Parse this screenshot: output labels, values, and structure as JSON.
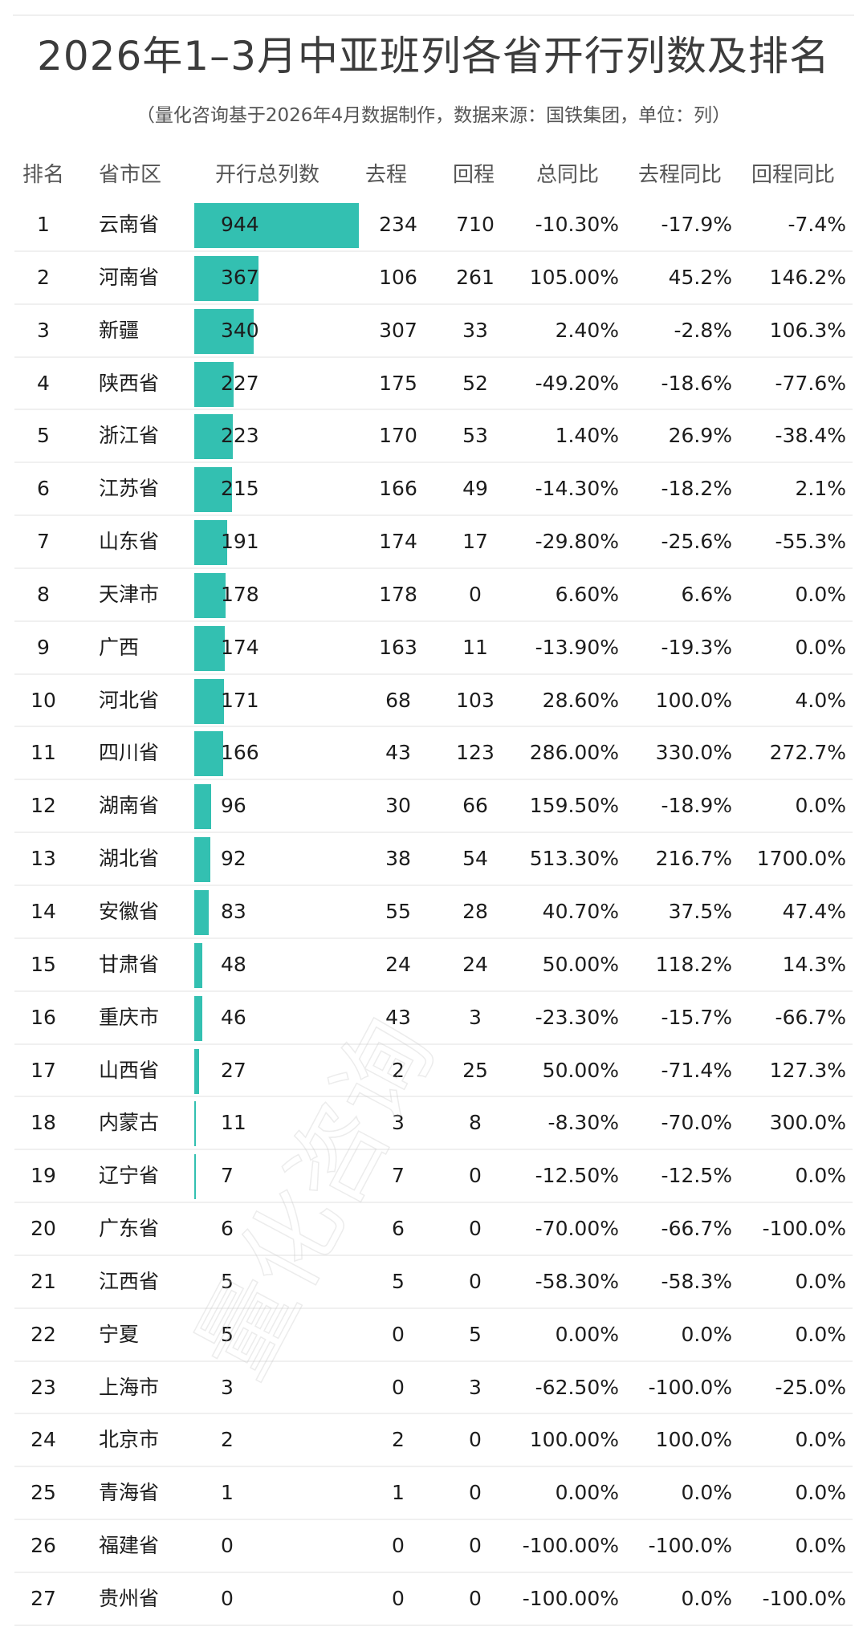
{
  "header": {
    "title": "2026年1–3月中亚班列各省开行列数及排名",
    "subtitle": "（量化咨询基于2026年4月数据制作，数据来源：国铁集团，单位：列）"
  },
  "table": {
    "columns": [
      "排名",
      "省市区",
      "开行总列数",
      "去程",
      "回程",
      "总同比",
      "去程同比",
      "回程同比"
    ],
    "bar_color": "#33c0b1",
    "bar_max_value": 944,
    "bar_max_width": 205,
    "rows": [
      {
        "rank": "1",
        "province": "云南省",
        "total": "944",
        "outbound": "234",
        "return": "710",
        "yoy": "-10.30%",
        "out_yoy": "-17.9%",
        "ret_yoy": "-7.4%"
      },
      {
        "rank": "2",
        "province": "河南省",
        "total": "367",
        "outbound": "106",
        "return": "261",
        "yoy": "105.00%",
        "out_yoy": "45.2%",
        "ret_yoy": "146.2%"
      },
      {
        "rank": "3",
        "province": "新疆",
        "total": "340",
        "outbound": "307",
        "return": "33",
        "yoy": "2.40%",
        "out_yoy": "-2.8%",
        "ret_yoy": "106.3%"
      },
      {
        "rank": "4",
        "province": "陕西省",
        "total": "227",
        "outbound": "175",
        "return": "52",
        "yoy": "-49.20%",
        "out_yoy": "-18.6%",
        "ret_yoy": "-77.6%"
      },
      {
        "rank": "5",
        "province": "浙江省",
        "total": "223",
        "outbound": "170",
        "return": "53",
        "yoy": "1.40%",
        "out_yoy": "26.9%",
        "ret_yoy": "-38.4%"
      },
      {
        "rank": "6",
        "province": "江苏省",
        "total": "215",
        "outbound": "166",
        "return": "49",
        "yoy": "-14.30%",
        "out_yoy": "-18.2%",
        "ret_yoy": "2.1%"
      },
      {
        "rank": "7",
        "province": "山东省",
        "total": "191",
        "outbound": "174",
        "return": "17",
        "yoy": "-29.80%",
        "out_yoy": "-25.6%",
        "ret_yoy": "-55.3%"
      },
      {
        "rank": "8",
        "province": "天津市",
        "total": "178",
        "outbound": "178",
        "return": "0",
        "yoy": "6.60%",
        "out_yoy": "6.6%",
        "ret_yoy": "0.0%"
      },
      {
        "rank": "9",
        "province": "广西",
        "total": "174",
        "outbound": "163",
        "return": "11",
        "yoy": "-13.90%",
        "out_yoy": "-19.3%",
        "ret_yoy": "0.0%"
      },
      {
        "rank": "10",
        "province": "河北省",
        "total": "171",
        "outbound": "68",
        "return": "103",
        "yoy": "28.60%",
        "out_yoy": "100.0%",
        "ret_yoy": "4.0%"
      },
      {
        "rank": "11",
        "province": "四川省",
        "total": "166",
        "outbound": "43",
        "return": "123",
        "yoy": "286.00%",
        "out_yoy": "330.0%",
        "ret_yoy": "272.7%"
      },
      {
        "rank": "12",
        "province": "湖南省",
        "total": "96",
        "outbound": "30",
        "return": "66",
        "yoy": "159.50%",
        "out_yoy": "-18.9%",
        "ret_yoy": "0.0%"
      },
      {
        "rank": "13",
        "province": "湖北省",
        "total": "92",
        "outbound": "38",
        "return": "54",
        "yoy": "513.30%",
        "out_yoy": "216.7%",
        "ret_yoy": "1700.0%"
      },
      {
        "rank": "14",
        "province": "安徽省",
        "total": "83",
        "outbound": "55",
        "return": "28",
        "yoy": "40.70%",
        "out_yoy": "37.5%",
        "ret_yoy": "47.4%"
      },
      {
        "rank": "15",
        "province": "甘肃省",
        "total": "48",
        "outbound": "24",
        "return": "24",
        "yoy": "50.00%",
        "out_yoy": "118.2%",
        "ret_yoy": "14.3%"
      },
      {
        "rank": "16",
        "province": "重庆市",
        "total": "46",
        "outbound": "43",
        "return": "3",
        "yoy": "-23.30%",
        "out_yoy": "-15.7%",
        "ret_yoy": "-66.7%"
      },
      {
        "rank": "17",
        "province": "山西省",
        "total": "27",
        "outbound": "2",
        "return": "25",
        "yoy": "50.00%",
        "out_yoy": "-71.4%",
        "ret_yoy": "127.3%"
      },
      {
        "rank": "18",
        "province": "内蒙古",
        "total": "11",
        "outbound": "3",
        "return": "8",
        "yoy": "-8.30%",
        "out_yoy": "-70.0%",
        "ret_yoy": "300.0%"
      },
      {
        "rank": "19",
        "province": "辽宁省",
        "total": "7",
        "outbound": "7",
        "return": "0",
        "yoy": "-12.50%",
        "out_yoy": "-12.5%",
        "ret_yoy": "0.0%"
      },
      {
        "rank": "20",
        "province": "广东省",
        "total": "6",
        "outbound": "6",
        "return": "0",
        "yoy": "-70.00%",
        "out_yoy": "-66.7%",
        "ret_yoy": "-100.0%"
      },
      {
        "rank": "21",
        "province": "江西省",
        "total": "5",
        "outbound": "5",
        "return": "0",
        "yoy": "-58.30%",
        "out_yoy": "-58.3%",
        "ret_yoy": "0.0%"
      },
      {
        "rank": "22",
        "province": "宁夏",
        "total": "5",
        "outbound": "0",
        "return": "5",
        "yoy": "0.00%",
        "out_yoy": "0.0%",
        "ret_yoy": "0.0%"
      },
      {
        "rank": "23",
        "province": "上海市",
        "total": "3",
        "outbound": "0",
        "return": "3",
        "yoy": "-62.50%",
        "out_yoy": "-100.0%",
        "ret_yoy": "-25.0%"
      },
      {
        "rank": "24",
        "province": "北京市",
        "total": "2",
        "outbound": "2",
        "return": "0",
        "yoy": "100.00%",
        "out_yoy": "100.0%",
        "ret_yoy": "0.0%"
      },
      {
        "rank": "25",
        "province": "青海省",
        "total": "1",
        "outbound": "1",
        "return": "0",
        "yoy": "0.00%",
        "out_yoy": "0.0%",
        "ret_yoy": "0.0%"
      },
      {
        "rank": "26",
        "province": "福建省",
        "total": "0",
        "outbound": "0",
        "return": "0",
        "yoy": "-100.00%",
        "out_yoy": "-100.0%",
        "ret_yoy": "0.0%"
      },
      {
        "rank": "27",
        "province": "贵州省",
        "total": "0",
        "outbound": "0",
        "return": "0",
        "yoy": "-100.00%",
        "out_yoy": "0.0%",
        "ret_yoy": "-100.0%"
      }
    ]
  },
  "watermark": "量化咨询",
  "chart_data": {
    "type": "table",
    "title": "2026年1–3月中亚班列各省开行列数及排名",
    "subtitle": "（量化咨询基于2026年4月数据制作，数据来源：国铁集团，单位：列）",
    "columns": [
      "排名",
      "省市区",
      "开行总列数",
      "去程",
      "回程",
      "总同比",
      "去程同比",
      "回程同比"
    ],
    "embedded_bar_column": "开行总列数",
    "categories": [
      "云南省",
      "河南省",
      "新疆",
      "陕西省",
      "浙江省",
      "江苏省",
      "山东省",
      "天津市",
      "广西",
      "河北省",
      "四川省",
      "湖南省",
      "湖北省",
      "安徽省",
      "甘肃省",
      "重庆市",
      "山西省",
      "内蒙古",
      "辽宁省",
      "广东省",
      "江西省",
      "宁夏",
      "上海市",
      "北京市",
      "青海省",
      "福建省",
      "贵州省"
    ],
    "series": [
      {
        "name": "开行总列数",
        "values": [
          944,
          367,
          340,
          227,
          223,
          215,
          191,
          178,
          174,
          171,
          166,
          96,
          92,
          83,
          48,
          46,
          27,
          11,
          7,
          6,
          5,
          5,
          3,
          2,
          1,
          0,
          0
        ]
      },
      {
        "name": "去程",
        "values": [
          234,
          106,
          307,
          175,
          170,
          166,
          174,
          178,
          163,
          68,
          43,
          30,
          38,
          55,
          24,
          43,
          2,
          3,
          7,
          6,
          5,
          0,
          0,
          2,
          1,
          0,
          0
        ]
      },
      {
        "name": "回程",
        "values": [
          710,
          261,
          33,
          52,
          53,
          49,
          17,
          0,
          11,
          103,
          123,
          66,
          54,
          28,
          24,
          3,
          25,
          8,
          0,
          0,
          0,
          5,
          3,
          0,
          0,
          0,
          0
        ]
      },
      {
        "name": "总同比(%)",
        "values": [
          -10.3,
          105.0,
          2.4,
          -49.2,
          1.4,
          -14.3,
          -29.8,
          6.6,
          -13.9,
          28.6,
          286.0,
          159.5,
          513.3,
          40.7,
          50.0,
          -23.3,
          50.0,
          -8.3,
          -12.5,
          -70.0,
          -58.3,
          0.0,
          -62.5,
          100.0,
          0.0,
          -100.0,
          -100.0
        ]
      },
      {
        "name": "去程同比(%)",
        "values": [
          -17.9,
          45.2,
          -2.8,
          -18.6,
          26.9,
          -18.2,
          -25.6,
          6.6,
          -19.3,
          100.0,
          330.0,
          -18.9,
          216.7,
          37.5,
          118.2,
          -15.7,
          -71.4,
          -70.0,
          -12.5,
          -66.7,
          -58.3,
          0.0,
          -100.0,
          100.0,
          0.0,
          -100.0,
          0.0
        ]
      },
      {
        "name": "回程同比(%)",
        "values": [
          -7.4,
          146.2,
          106.3,
          -77.6,
          -38.4,
          2.1,
          -55.3,
          0.0,
          0.0,
          4.0,
          272.7,
          0.0,
          1700.0,
          47.4,
          14.3,
          -66.7,
          127.3,
          300.0,
          0.0,
          -100.0,
          0.0,
          0.0,
          -25.0,
          0.0,
          0.0,
          0.0,
          -100.0
        ]
      }
    ]
  }
}
